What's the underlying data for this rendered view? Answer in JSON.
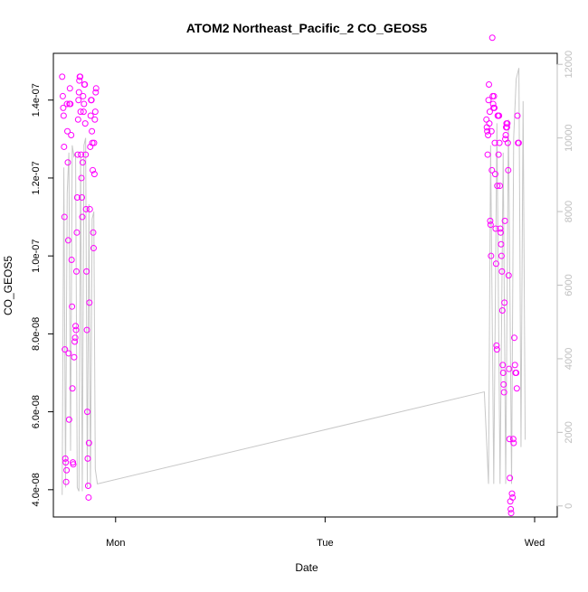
{
  "chart_data": {
    "type": "scatter",
    "title": "ATOM2 Northeast_Pacific_2 CO_GEOS5",
    "xlabel": "Date",
    "ylabel": "CO_GEOS5",
    "x_tick_labels": [
      "Mon",
      "Tue",
      "Wed"
    ],
    "y_tick_labels": [
      "4.0e-08",
      "6.0e-08",
      "8.0e-08",
      "1.0e-07",
      "1.2e-07",
      "1.4e-07"
    ],
    "y_ticks": [
      4e-08,
      6e-08,
      8e-08,
      1e-07,
      1.2e-07,
      1.4e-07
    ],
    "y2_tick_labels": [
      "0",
      "2000",
      "4000",
      "6000",
      "8000",
      "10000",
      "12000"
    ],
    "y2_ticks": [
      0,
      2000,
      4000,
      6000,
      8000,
      10000,
      12000
    ],
    "x_axis_unit": "days since Monday 00:00 (Mon = 0, Tue = 1, Wed = 2)",
    "xlim": [
      -0.297,
      2.108
    ],
    "ylim": [
      3.3e-08,
      1.52e-07
    ],
    "y2lim": [
      -300,
      12300
    ],
    "colors": {
      "points": "#ff00ff",
      "line": "#c8c8c8",
      "axis": "#000000",
      "secondary_axis": "#bfbfbf"
    },
    "series": [
      {
        "type": "scatter",
        "points": [
          [
            -0.255,
            1.46e-07
          ],
          [
            -0.252,
            1.41e-07
          ],
          [
            -0.25,
            1.38e-07
          ],
          [
            -0.248,
            1.36e-07
          ],
          [
            -0.246,
            1.28e-07
          ],
          [
            -0.244,
            1.1e-07
          ],
          [
            -0.242,
            7.6e-08
          ],
          [
            -0.24,
            4.8e-08
          ],
          [
            -0.238,
            4.7e-08
          ],
          [
            -0.236,
            4.2e-08
          ],
          [
            -0.234,
            4.5e-08
          ],
          [
            -0.232,
            1.39e-07
          ],
          [
            -0.23,
            1.32e-07
          ],
          [
            -0.228,
            1.24e-07
          ],
          [
            -0.226,
            1.04e-07
          ],
          [
            -0.224,
            7.5e-08
          ],
          [
            -0.222,
            5.8e-08
          ],
          [
            -0.22,
            1.39e-07
          ],
          [
            -0.218,
            1.43e-07
          ],
          [
            -0.216,
            1.39e-07
          ],
          [
            -0.212,
            1.31e-07
          ],
          [
            -0.21,
            9.9e-08
          ],
          [
            -0.208,
            8.7e-08
          ],
          [
            -0.206,
            6.6e-08
          ],
          [
            -0.204,
            4.7e-08
          ],
          [
            -0.202,
            4.65e-08
          ],
          [
            -0.198,
            7.4e-08
          ],
          [
            -0.195,
            7.8e-08
          ],
          [
            -0.193,
            7.9e-08
          ],
          [
            -0.191,
            8.2e-08
          ],
          [
            -0.189,
            8.1e-08
          ],
          [
            -0.187,
            9.6e-08
          ],
          [
            -0.185,
            1.06e-07
          ],
          [
            -0.183,
            1.15e-07
          ],
          [
            -0.181,
            1.26e-07
          ],
          [
            -0.179,
            1.35e-07
          ],
          [
            -0.177,
            1.4e-07
          ],
          [
            -0.175,
            1.42e-07
          ],
          [
            -0.173,
            1.45e-07
          ],
          [
            -0.171,
            1.46e-07
          ],
          [
            -0.169,
            1.46e-07
          ],
          [
            -0.167,
            1.37e-07
          ],
          [
            -0.165,
            1.26e-07
          ],
          [
            -0.163,
            1.2e-07
          ],
          [
            -0.161,
            1.15e-07
          ],
          [
            -0.159,
            1.1e-07
          ],
          [
            -0.157,
            1.24e-07
          ],
          [
            -0.155,
            1.41e-07
          ],
          [
            -0.153,
            1.37e-07
          ],
          [
            -0.151,
            1.39e-07
          ],
          [
            -0.149,
            1.44e-07
          ],
          [
            -0.147,
            1.44e-07
          ],
          [
            -0.145,
            1.34e-07
          ],
          [
            -0.143,
            1.26e-07
          ],
          [
            -0.141,
            1.12e-07
          ],
          [
            -0.139,
            9.6e-08
          ],
          [
            -0.137,
            8.1e-08
          ],
          [
            -0.135,
            6e-08
          ],
          [
            -0.133,
            4.8e-08
          ],
          [
            -0.131,
            4.1e-08
          ],
          [
            -0.129,
            3.8e-08
          ],
          [
            -0.127,
            5.2e-08
          ],
          [
            -0.125,
            8.8e-08
          ],
          [
            -0.123,
            1.12e-07
          ],
          [
            -0.121,
            1.28e-07
          ],
          [
            -0.119,
            1.36e-07
          ],
          [
            -0.117,
            1.4e-07
          ],
          [
            -0.115,
            1.4e-07
          ],
          [
            -0.113,
            1.32e-07
          ],
          [
            -0.111,
            1.29e-07
          ],
          [
            -0.109,
            1.22e-07
          ],
          [
            -0.107,
            1.06e-07
          ],
          [
            -0.105,
            1.02e-07
          ],
          [
            -0.103,
            1.29e-07
          ],
          [
            -0.101,
            1.21e-07
          ],
          [
            -0.099,
            1.35e-07
          ],
          [
            -0.097,
            1.37e-07
          ],
          [
            -0.095,
            1.42e-07
          ],
          [
            -0.093,
            1.43e-07
          ],
          [
            1.77,
            1.35e-07
          ],
          [
            1.772,
            1.33e-07
          ],
          [
            1.774,
            1.32e-07
          ],
          [
            1.776,
            1.26e-07
          ],
          [
            1.778,
            1.31e-07
          ],
          [
            1.78,
            1.4e-07
          ],
          [
            1.782,
            1.44e-07
          ],
          [
            1.784,
            1.34e-07
          ],
          [
            1.786,
            1.37e-07
          ],
          [
            1.788,
            1.09e-07
          ],
          [
            1.79,
            1.08e-07
          ],
          [
            1.792,
            1e-07
          ],
          [
            1.794,
            1.32e-07
          ],
          [
            1.796,
            1.22e-07
          ],
          [
            1.798,
            1.56e-07
          ],
          [
            1.8,
            1.41e-07
          ],
          [
            1.802,
            1.39e-07
          ],
          [
            1.804,
            1.38e-07
          ],
          [
            1.806,
            1.41e-07
          ],
          [
            1.808,
            1.38e-07
          ],
          [
            1.81,
            1.29e-07
          ],
          [
            1.812,
            1.21e-07
          ],
          [
            1.814,
            1.07e-07
          ],
          [
            1.816,
            9.8e-08
          ],
          [
            1.818,
            7.7e-08
          ],
          [
            1.82,
            7.6e-08
          ],
          [
            1.822,
            1.18e-07
          ],
          [
            1.824,
            1.36e-07
          ],
          [
            1.826,
            1.36e-07
          ],
          [
            1.828,
            1.26e-07
          ],
          [
            1.83,
            1.36e-07
          ],
          [
            1.832,
            1.29e-07
          ],
          [
            1.834,
            1.18e-07
          ],
          [
            1.836,
            1.07e-07
          ],
          [
            1.838,
            1.06e-07
          ],
          [
            1.84,
            1.03e-07
          ],
          [
            1.842,
            1e-07
          ],
          [
            1.844,
            9.6e-08
          ],
          [
            1.846,
            8.6e-08
          ],
          [
            1.848,
            7.2e-08
          ],
          [
            1.85,
            7e-08
          ],
          [
            1.852,
            6.7e-08
          ],
          [
            1.854,
            6.5e-08
          ],
          [
            1.856,
            8.8e-08
          ],
          [
            1.858,
            1.09e-07
          ],
          [
            1.86,
            1.3e-07
          ],
          [
            1.862,
            1.31e-07
          ],
          [
            1.864,
            1.33e-07
          ],
          [
            1.866,
            1.34e-07
          ],
          [
            1.868,
            1.33e-07
          ],
          [
            1.87,
            1.34e-07
          ],
          [
            1.872,
            1.29e-07
          ],
          [
            1.874,
            1.22e-07
          ],
          [
            1.876,
            9.5e-08
          ],
          [
            1.878,
            7.1e-08
          ],
          [
            1.88,
            5.3e-08
          ],
          [
            1.882,
            4.3e-08
          ],
          [
            1.884,
            3.7e-08
          ],
          [
            1.886,
            3.5e-08
          ],
          [
            1.888,
            3.4e-08
          ],
          [
            1.892,
            3.9e-08
          ],
          [
            1.895,
            3.8e-08
          ],
          [
            1.898,
            5.3e-08
          ],
          [
            1.9,
            5.2e-08
          ],
          [
            1.903,
            7.9e-08
          ],
          [
            1.906,
            7.2e-08
          ],
          [
            1.909,
            7e-08
          ],
          [
            1.912,
            7e-08
          ],
          [
            1.915,
            6.6e-08
          ],
          [
            1.918,
            1.36e-07
          ],
          [
            1.921,
            1.29e-07
          ],
          [
            1.924,
            1.29e-07
          ]
        ]
      },
      {
        "type": "line",
        "axis": "y2",
        "points": [
          [
            -0.255,
            300
          ],
          [
            -0.247,
            9200
          ],
          [
            -0.239,
            500
          ],
          [
            -0.231,
            8500
          ],
          [
            -0.223,
            9600
          ],
          [
            -0.215,
            1500
          ],
          [
            -0.207,
            9800
          ],
          [
            -0.199,
            9500
          ],
          [
            -0.191,
            9600
          ],
          [
            -0.183,
            500
          ],
          [
            -0.175,
            400
          ],
          [
            -0.167,
            9500
          ],
          [
            -0.159,
            400
          ],
          [
            -0.151,
            9800
          ],
          [
            -0.143,
            10000
          ],
          [
            -0.135,
            500
          ],
          [
            -0.127,
            8200
          ],
          [
            -0.12,
            500
          ],
          [
            -0.112,
            7800
          ],
          [
            -0.104,
            8000
          ],
          [
            -0.097,
            1000
          ],
          [
            -0.087,
            600
          ],
          [
            1.76,
            3100
          ],
          [
            1.78,
            600
          ],
          [
            1.79,
            9800
          ],
          [
            1.805,
            600
          ],
          [
            1.82,
            10400
          ],
          [
            1.835,
            600
          ],
          [
            1.85,
            9600
          ],
          [
            1.862,
            600
          ],
          [
            1.875,
            10500
          ],
          [
            1.89,
            600
          ],
          [
            1.9,
            10000
          ],
          [
            1.912,
            11600
          ],
          [
            1.925,
            11900
          ],
          [
            1.935,
            1600
          ],
          [
            1.945,
            11000
          ],
          [
            1.955,
            1800
          ]
        ]
      }
    ]
  }
}
